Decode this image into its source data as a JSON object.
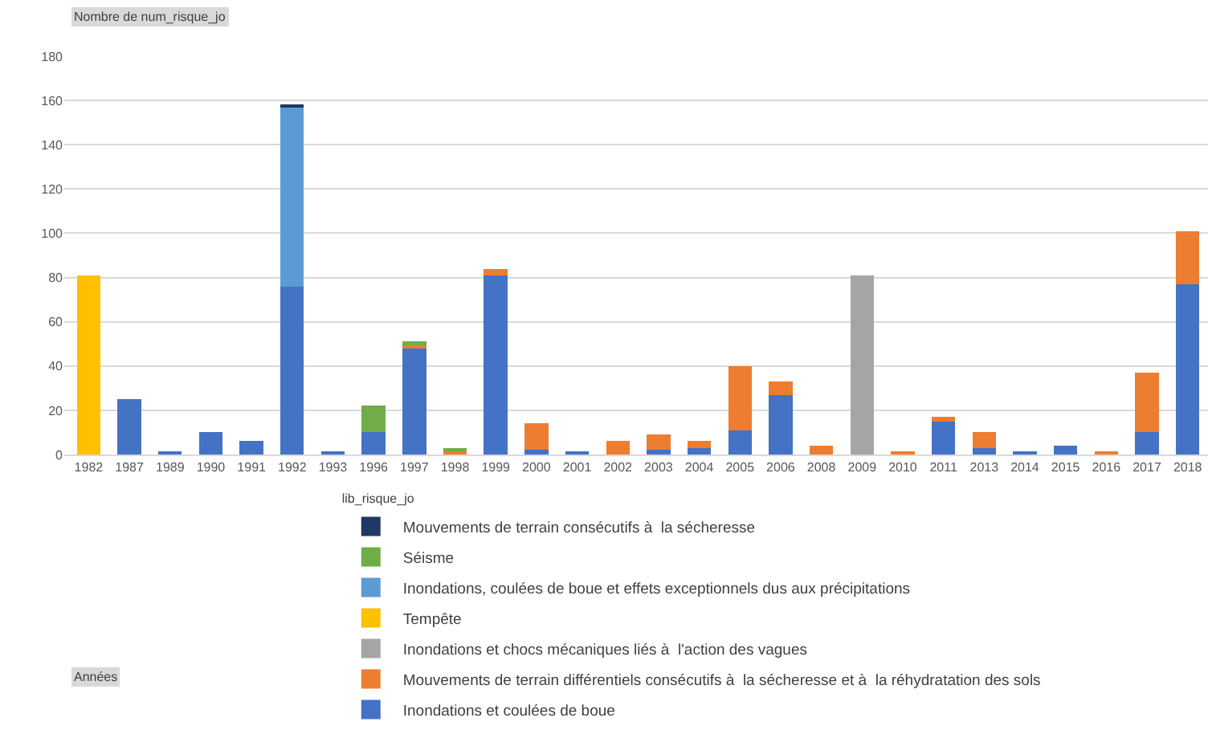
{
  "chart_data": {
    "type": "bar",
    "stacked": true,
    "title": "Nombre de num_risque_jo",
    "annotations": [
      "Années"
    ],
    "legend_title": "lib_risque_jo",
    "categories": [
      "1982",
      "1987",
      "1989",
      "1990",
      "1991",
      "1992",
      "1993",
      "1996",
      "1997",
      "1998",
      "1999",
      "2000",
      "2001",
      "2002",
      "2003",
      "2004",
      "2005",
      "2006",
      "2008",
      "2009",
      "2010",
      "2011",
      "2013",
      "2014",
      "2015",
      "2016",
      "2017",
      "2018"
    ],
    "series": [
      {
        "name": "Inondations et coulées de boue",
        "color": "#4472c4",
        "values": [
          null,
          25,
          1,
          10,
          6,
          76,
          1,
          10,
          48,
          null,
          81,
          2,
          1,
          null,
          2,
          3,
          11,
          27,
          null,
          null,
          null,
          15,
          3,
          1,
          4,
          null,
          10,
          77
        ]
      },
      {
        "name": "Mouvements de terrain différentiels consécutifs à  la sécheresse et à  la réhydratation des sols",
        "color": "#ed7d31",
        "values": [
          null,
          null,
          null,
          null,
          null,
          null,
          null,
          null,
          2,
          2,
          3,
          12,
          null,
          6,
          7,
          3,
          29,
          6,
          4,
          null,
          1,
          2,
          7,
          null,
          null,
          1,
          27,
          24
        ]
      },
      {
        "name": "Inondations et chocs mécaniques liés à  l'action des vagues",
        "color": "#a5a5a5",
        "values": [
          null,
          null,
          null,
          null,
          null,
          null,
          null,
          null,
          null,
          null,
          null,
          null,
          null,
          null,
          null,
          null,
          null,
          null,
          null,
          81,
          null,
          null,
          null,
          null,
          null,
          null,
          null,
          null
        ]
      },
      {
        "name": "Tempête",
        "color": "#ffc000",
        "values": [
          81,
          null,
          null,
          null,
          null,
          null,
          null,
          null,
          null,
          null,
          null,
          null,
          null,
          null,
          null,
          null,
          null,
          null,
          null,
          null,
          null,
          null,
          null,
          null,
          null,
          null,
          null,
          null
        ]
      },
      {
        "name": "Inondations, coulées de boue et effets exceptionnels dus aux précipitations",
        "color": "#5b9bd5",
        "values": [
          null,
          null,
          null,
          null,
          null,
          81,
          null,
          null,
          null,
          null,
          null,
          null,
          null,
          null,
          null,
          null,
          null,
          null,
          null,
          null,
          null,
          null,
          null,
          null,
          null,
          null,
          null,
          null
        ]
      },
      {
        "name": "Séisme",
        "color": "#70ad47",
        "values": [
          null,
          null,
          null,
          null,
          null,
          null,
          null,
          12,
          1,
          1,
          null,
          null,
          null,
          null,
          null,
          null,
          null,
          null,
          null,
          null,
          null,
          null,
          null,
          null,
          null,
          null,
          null,
          null
        ]
      },
      {
        "name": "Mouvements de terrain consécutifs à  la sécheresse",
        "color": "#1f3864",
        "values": [
          null,
          null,
          null,
          null,
          null,
          1,
          null,
          null,
          null,
          null,
          null,
          null,
          null,
          null,
          null,
          null,
          null,
          null,
          null,
          null,
          null,
          null,
          null,
          null,
          null,
          null,
          null,
          null
        ]
      }
    ],
    "ylim": [
      0,
      180
    ],
    "yticks": [
      0,
      20,
      40,
      60,
      80,
      100,
      120,
      140,
      160,
      180
    ],
    "grid": "y",
    "legend": "bottom"
  }
}
